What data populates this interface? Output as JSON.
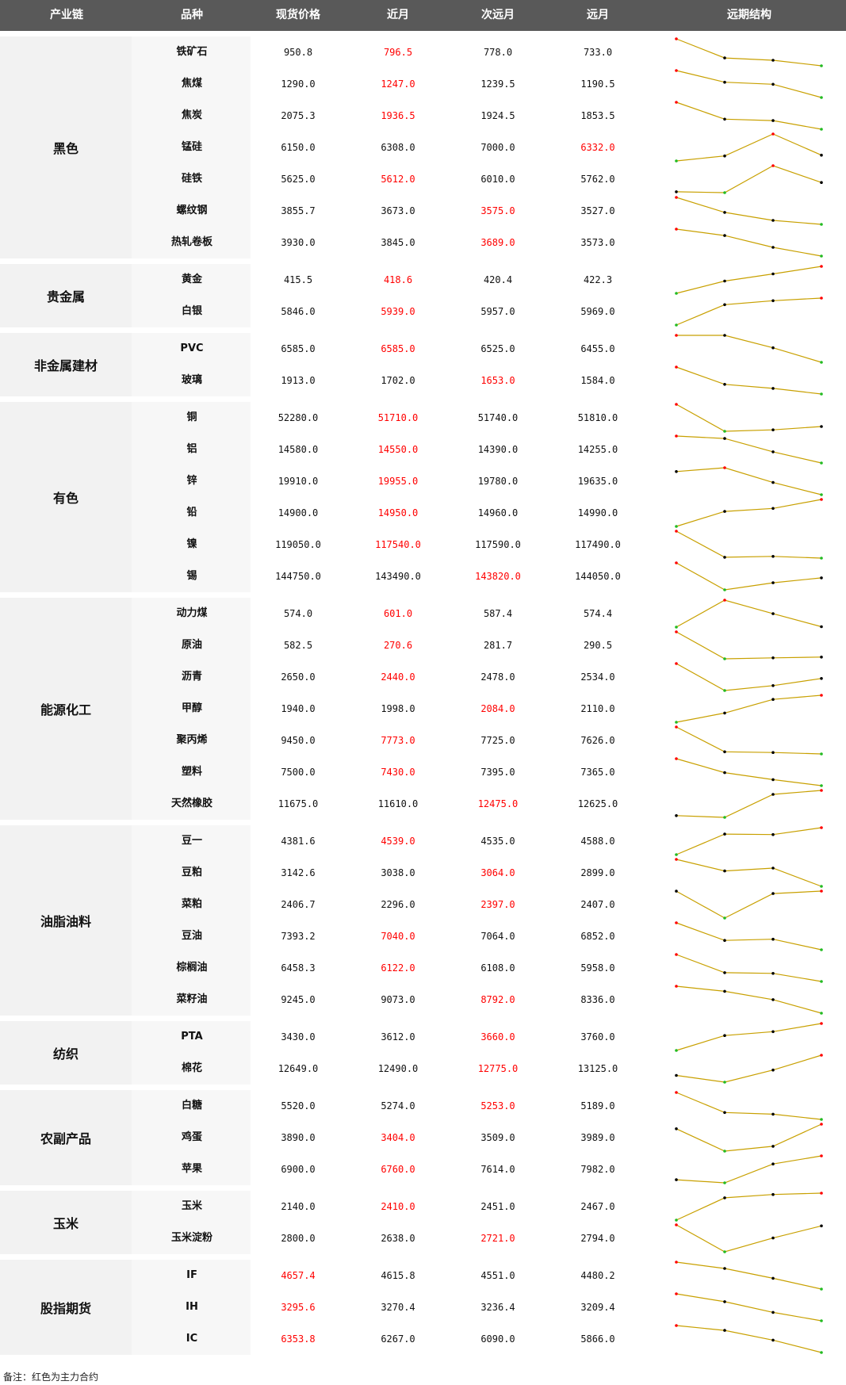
{
  "header": [
    "产业链",
    "品种",
    "现货价格",
    "近月",
    "次远月",
    "远月",
    "远期结构"
  ],
  "note": "备注：红色为主力合约",
  "colors": {
    "header_bg": "#595959",
    "main_contract": "#ff0000",
    "line": "#c8a000",
    "dot_high": "#ff0000",
    "dot_low": "#22bb22",
    "dot_mid": "#000000"
  },
  "groups": [
    {
      "name": "黑色",
      "rows": [
        {
          "name": "铁矿石",
          "spot": "950.8",
          "near": "796.5",
          "next": "778.0",
          "far": "733.0",
          "main": 1
        },
        {
          "name": "焦煤",
          "spot": "1290.0",
          "near": "1247.0",
          "next": "1239.5",
          "far": "1190.5",
          "main": 1
        },
        {
          "name": "焦炭",
          "spot": "2075.3",
          "near": "1936.5",
          "next": "1924.5",
          "far": "1853.5",
          "main": 1
        },
        {
          "name": "锰硅",
          "spot": "6150.0",
          "near": "6308.0",
          "next": "7000.0",
          "far": "6332.0",
          "main": 3
        },
        {
          "name": "硅铁",
          "spot": "5625.0",
          "near": "5612.0",
          "next": "6010.0",
          "far": "5762.0",
          "main": 1
        },
        {
          "name": "螺纹钢",
          "spot": "3855.7",
          "near": "3673.0",
          "next": "3575.0",
          "far": "3527.0",
          "main": 2
        },
        {
          "name": "热轧卷板",
          "spot": "3930.0",
          "near": "3845.0",
          "next": "3689.0",
          "far": "3573.0",
          "main": 2
        }
      ]
    },
    {
      "name": "贵金属",
      "rows": [
        {
          "name": "黄金",
          "spot": "415.5",
          "near": "418.6",
          "next": "420.4",
          "far": "422.3",
          "main": 1
        },
        {
          "name": "白银",
          "spot": "5846.0",
          "near": "5939.0",
          "next": "5957.0",
          "far": "5969.0",
          "main": 1
        }
      ]
    },
    {
      "name": "非金属建材",
      "rows": [
        {
          "name": "PVC",
          "spot": "6585.0",
          "near": "6585.0",
          "next": "6525.0",
          "far": "6455.0",
          "main": 1
        },
        {
          "name": "玻璃",
          "spot": "1913.0",
          "near": "1702.0",
          "next": "1653.0",
          "far": "1584.0",
          "main": 2
        }
      ]
    },
    {
      "name": "有色",
      "rows": [
        {
          "name": "铜",
          "spot": "52280.0",
          "near": "51710.0",
          "next": "51740.0",
          "far": "51810.0",
          "main": 1
        },
        {
          "name": "铝",
          "spot": "14580.0",
          "near": "14550.0",
          "next": "14390.0",
          "far": "14255.0",
          "main": 1
        },
        {
          "name": "锌",
          "spot": "19910.0",
          "near": "19955.0",
          "next": "19780.0",
          "far": "19635.0",
          "main": 1
        },
        {
          "name": "铅",
          "spot": "14900.0",
          "near": "14950.0",
          "next": "14960.0",
          "far": "14990.0",
          "main": 1
        },
        {
          "name": "镍",
          "spot": "119050.0",
          "near": "117540.0",
          "next": "117590.0",
          "far": "117490.0",
          "main": 1
        },
        {
          "name": "锡",
          "spot": "144750.0",
          "near": "143490.0",
          "next": "143820.0",
          "far": "144050.0",
          "main": 2
        }
      ]
    },
    {
      "name": "能源化工",
      "rows": [
        {
          "name": "动力煤",
          "spot": "574.0",
          "near": "601.0",
          "next": "587.4",
          "far": "574.4",
          "main": 1
        },
        {
          "name": "原油",
          "spot": "582.5",
          "near": "270.6",
          "next": "281.7",
          "far": "290.5",
          "main": 1
        },
        {
          "name": "沥青",
          "spot": "2650.0",
          "near": "2440.0",
          "next": "2478.0",
          "far": "2534.0",
          "main": 1
        },
        {
          "name": "甲醇",
          "spot": "1940.0",
          "near": "1998.0",
          "next": "2084.0",
          "far": "2110.0",
          "main": 2
        },
        {
          "name": "聚丙烯",
          "spot": "9450.0",
          "near": "7773.0",
          "next": "7725.0",
          "far": "7626.0",
          "main": 1
        },
        {
          "name": "塑料",
          "spot": "7500.0",
          "near": "7430.0",
          "next": "7395.0",
          "far": "7365.0",
          "main": 1
        },
        {
          "name": "天然橡胶",
          "spot": "11675.0",
          "near": "11610.0",
          "next": "12475.0",
          "far": "12625.0",
          "main": 2
        }
      ]
    },
    {
      "name": "油脂油料",
      "rows": [
        {
          "name": "豆一",
          "spot": "4381.6",
          "near": "4539.0",
          "next": "4535.0",
          "far": "4588.0",
          "main": 1
        },
        {
          "name": "豆粕",
          "spot": "3142.6",
          "near": "3038.0",
          "next": "3064.0",
          "far": "2899.0",
          "main": 2
        },
        {
          "name": "菜粕",
          "spot": "2406.7",
          "near": "2296.0",
          "next": "2397.0",
          "far": "2407.0",
          "main": 2
        },
        {
          "name": "豆油",
          "spot": "7393.2",
          "near": "7040.0",
          "next": "7064.0",
          "far": "6852.0",
          "main": 1
        },
        {
          "name": "棕榈油",
          "spot": "6458.3",
          "near": "6122.0",
          "next": "6108.0",
          "far": "5958.0",
          "main": 1
        },
        {
          "name": "菜籽油",
          "spot": "9245.0",
          "near": "9073.0",
          "next": "8792.0",
          "far": "8336.0",
          "main": 2
        }
      ]
    },
    {
      "name": "纺织",
      "rows": [
        {
          "name": "PTA",
          "spot": "3430.0",
          "near": "3612.0",
          "next": "3660.0",
          "far": "3760.0",
          "main": 2
        },
        {
          "name": "棉花",
          "spot": "12649.0",
          "near": "12490.0",
          "next": "12775.0",
          "far": "13125.0",
          "main": 2
        }
      ]
    },
    {
      "name": "农副产品",
      "rows": [
        {
          "name": "白糖",
          "spot": "5520.0",
          "near": "5274.0",
          "next": "5253.0",
          "far": "5189.0",
          "main": 2
        },
        {
          "name": "鸡蛋",
          "spot": "3890.0",
          "near": "3404.0",
          "next": "3509.0",
          "far": "3989.0",
          "main": 1
        },
        {
          "name": "苹果",
          "spot": "6900.0",
          "near": "6760.0",
          "next": "7614.0",
          "far": "7982.0",
          "main": 1
        }
      ]
    },
    {
      "name": "玉米",
      "rows": [
        {
          "name": "玉米",
          "spot": "2140.0",
          "near": "2410.0",
          "next": "2451.0",
          "far": "2467.0",
          "main": 1
        },
        {
          "name": "玉米淀粉",
          "spot": "2800.0",
          "near": "2638.0",
          "next": "2721.0",
          "far": "2794.0",
          "main": 2
        }
      ]
    },
    {
      "name": "股指期货",
      "rows": [
        {
          "name": "IF",
          "spot": "4657.4",
          "near": "4615.8",
          "next": "4551.0",
          "far": "4480.2",
          "main": 0
        },
        {
          "name": "IH",
          "spot": "3295.6",
          "near": "3270.4",
          "next": "3236.4",
          "far": "3209.4",
          "main": 0
        },
        {
          "name": "IC",
          "spot": "6353.8",
          "near": "6267.0",
          "next": "6090.0",
          "far": "5866.0",
          "main": 0
        }
      ]
    }
  ]
}
